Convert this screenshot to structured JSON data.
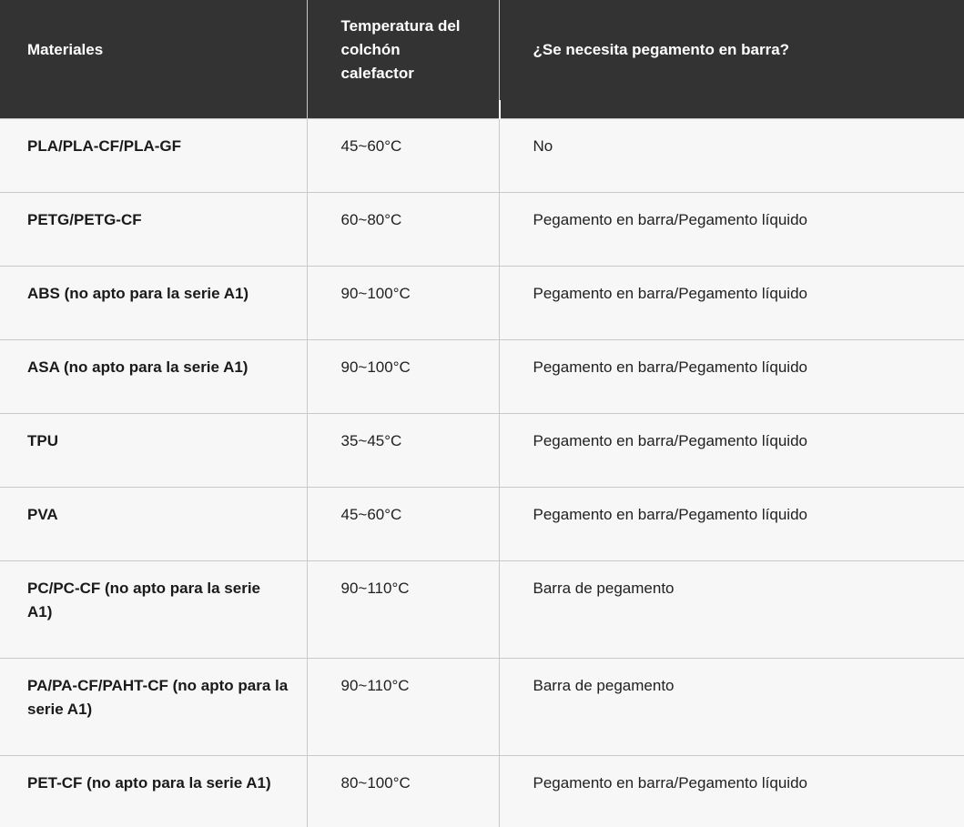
{
  "table": {
    "columns": [
      {
        "label": "Materiales"
      },
      {
        "label": "Temperatura del colchón calefactor"
      },
      {
        "label": "¿Se necesita pegamento en barra?"
      }
    ],
    "rows": [
      {
        "material": "PLA/PLA-CF/PLA-GF",
        "bed_temp": "45~60°C",
        "glue": "No"
      },
      {
        "material": "PETG/PETG-CF",
        "bed_temp": "60~80°C",
        "glue": "Pegamento en barra/Pegamento líquido"
      },
      {
        "material": "ABS (no apto para la serie A1)",
        "bed_temp": "90~100°C",
        "glue": "Pegamento en barra/Pegamento líquido"
      },
      {
        "material": "ASA (no apto para la serie A1)",
        "bed_temp": "90~100°C",
        "glue": "Pegamento en barra/Pegamento líquido"
      },
      {
        "material": "TPU",
        "bed_temp": "35~45°C",
        "glue": "Pegamento en barra/Pegamento líquido"
      },
      {
        "material": "PVA",
        "bed_temp": "45~60°C",
        "glue": "Pegamento en barra/Pegamento líquido"
      },
      {
        "material": "PC/PC-CF (no apto para la serie A1)",
        "bed_temp": "90~110°C",
        "glue": "Barra de pegamento"
      },
      {
        "material": "PA/PA-CF/PAHT-CF (no apto para la serie A1)",
        "bed_temp": "90~110°C",
        "glue": "Barra de pegamento"
      },
      {
        "material": "PET-CF (no apto para la serie A1)",
        "bed_temp": "80~100°C",
        "glue": "Pegamento en barra/Pegamento líquido"
      }
    ],
    "colors": {
      "header_bg": "#333333",
      "header_text": "#ffffff",
      "body_bg": "#f7f7f7",
      "body_text": "#212121",
      "border": "#c9c9c9",
      "divider_highlight": "#ffffff"
    }
  }
}
